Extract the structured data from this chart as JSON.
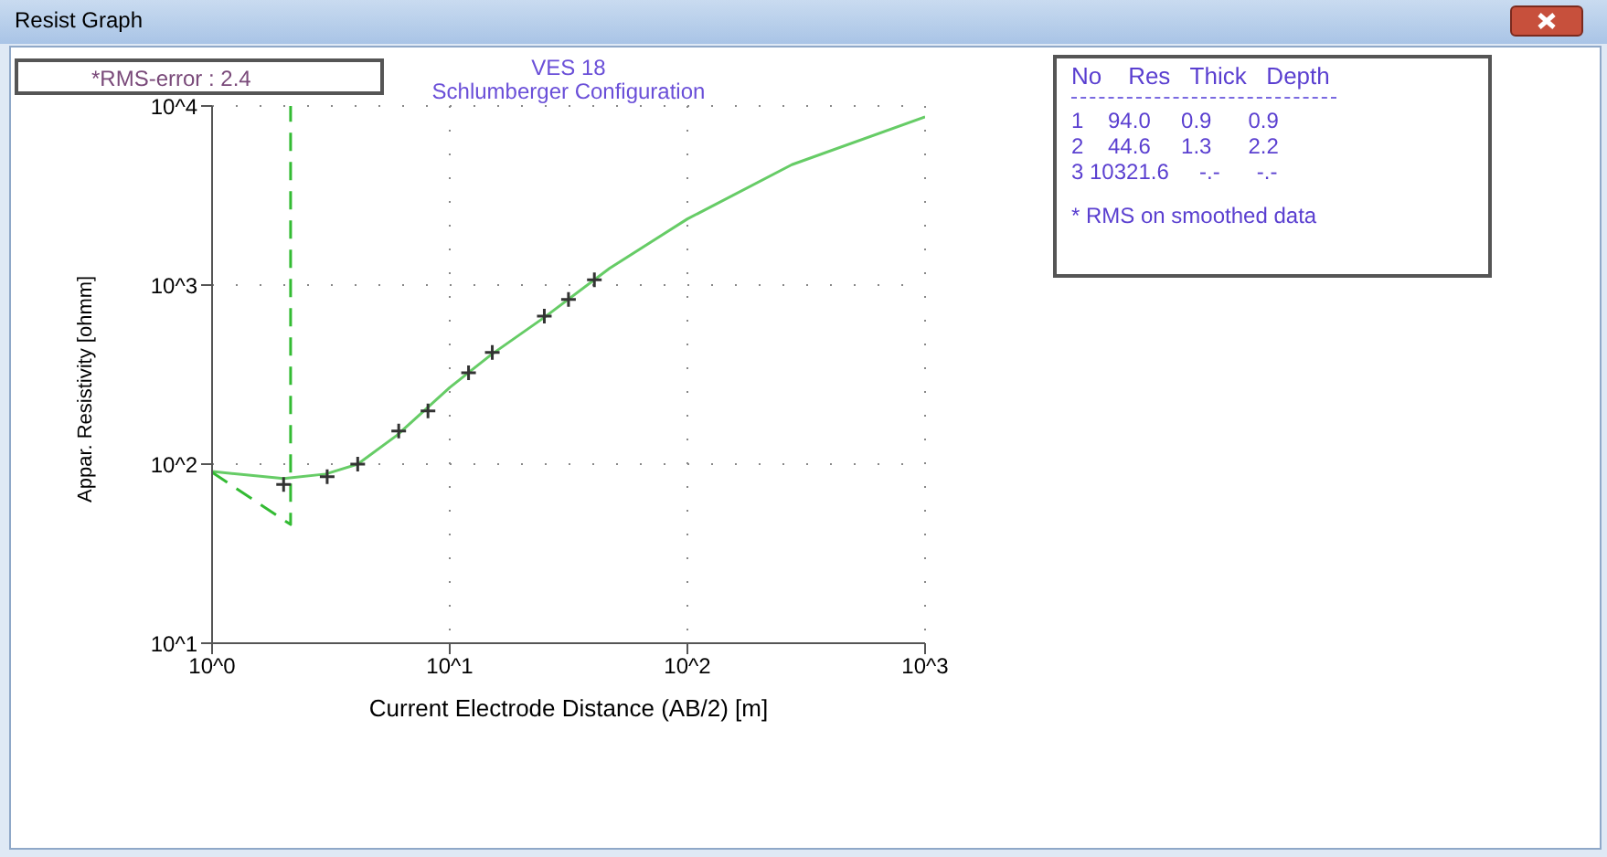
{
  "chart_data": {
    "type": "line",
    "title": "VES 18",
    "subtitle": "Schlumberger Configuration",
    "xlabel": "Current Electrode Distance (AB/2) [m]",
    "ylabel": "Appar. Resistivity [ohmm]",
    "log": "xy",
    "grid": true,
    "legend": false,
    "xlim": [
      1,
      1000
    ],
    "xticks": [
      {
        "value": 1,
        "label": "10^0"
      },
      {
        "value": 10,
        "label": "10^1"
      },
      {
        "value": 100,
        "label": "10^2"
      },
      {
        "value": 1000,
        "label": "10^3"
      }
    ],
    "ylim": [
      10,
      10000
    ],
    "yticks": [
      {
        "value": 10,
        "label": "10^1"
      },
      {
        "value": 100,
        "label": "10^2"
      },
      {
        "value": 1000,
        "label": "10^3"
      },
      {
        "value": 10000,
        "label": "10^4"
      }
    ],
    "series": [
      {
        "type": "scatter",
        "marker": "cross",
        "color": "#333333",
        "x": [
          2,
          3.05,
          4.1,
          6.1,
          8.1,
          12,
          15.1,
          25,
          31.6,
          40.6
        ],
        "values": [
          77,
          85,
          100,
          153,
          198,
          324,
          420,
          670,
          830,
          1070
        ]
      },
      {
        "marker": "none",
        "line_style": "solid",
        "color": "#66cc66",
        "x": [
          1,
          2,
          3,
          4.1,
          6,
          10,
          15,
          25,
          47,
          100,
          275,
          1000
        ],
        "values": [
          91,
          83,
          88,
          100,
          145,
          268,
          410,
          660,
          1240,
          2340,
          4700,
          8700
        ]
      },
      {
        "marker": "none",
        "line_style": "dashed",
        "color": "#33bb33",
        "x": [
          1,
          2.14,
          2.14
        ],
        "values": [
          90,
          46,
          10000
        ]
      }
    ],
    "annotations": [
      "Resist Graph",
      "*RMS-error :  2.4",
      "No    Res   Thick   Depth",
      "1    94.0     0.9      0.9",
      "2    44.6     1.3      2.2",
      "3 10321.6     -.-      -.-",
      "* RMS on smoothed data"
    ]
  }
}
